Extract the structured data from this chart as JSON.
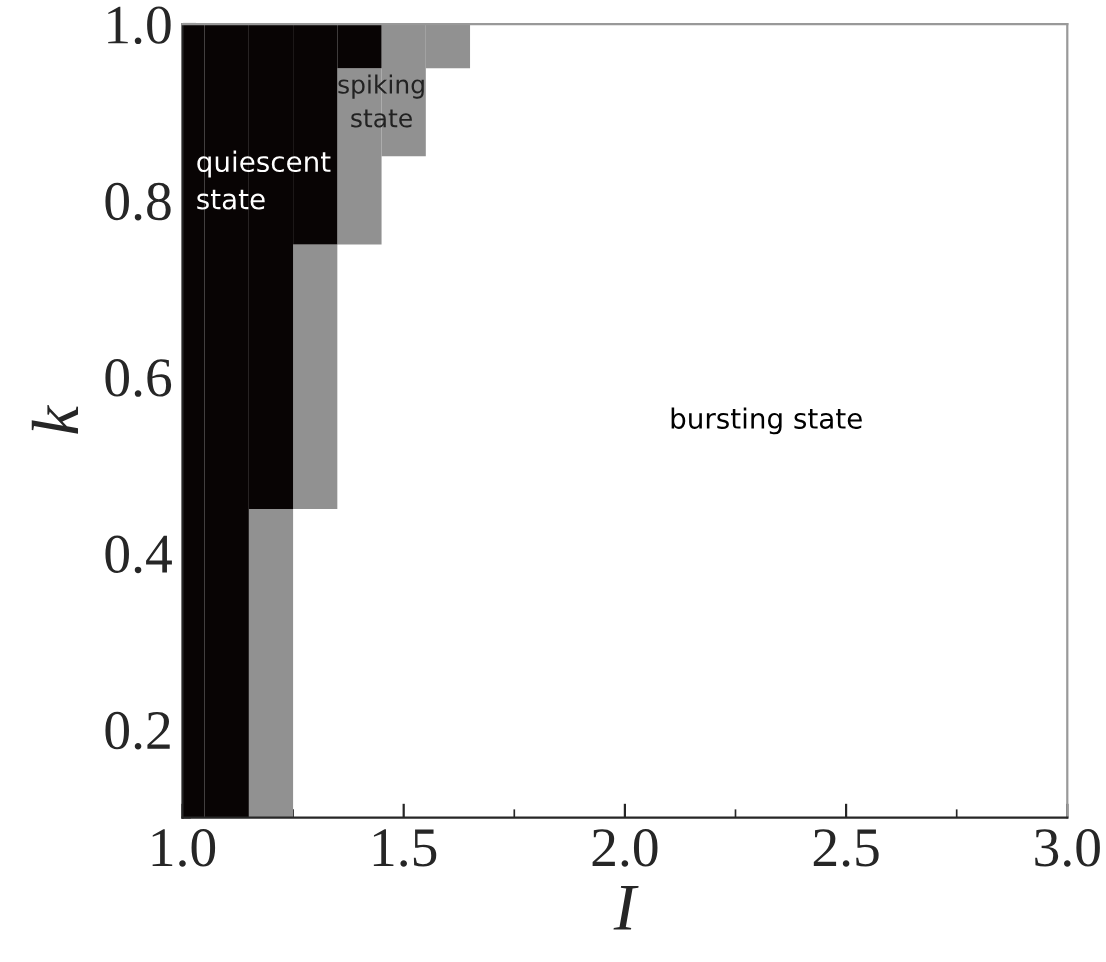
{
  "chart_data": {
    "type": "bar",
    "xlabel": "I",
    "ylabel": "k",
    "series": [
      {
        "color": "#919191",
        "x": [
          1.2,
          1.3,
          1.4,
          1.5,
          1.6
        ],
        "base": [
          0.1,
          0.45,
          0.75,
          0.85,
          0.95
        ],
        "values": [
          0.35,
          0.3,
          0.2,
          0.15,
          0.05
        ]
      },
      {
        "color": "#080404",
        "x": [
          1.0,
          1.1,
          1.2,
          1.3,
          1.4
        ],
        "base": [
          0.1,
          0.1,
          0.45,
          0.75,
          0.95
        ],
        "values": [
          0.9,
          0.9,
          0.55,
          0.25,
          0.05
        ]
      }
    ],
    "xlim": [
      1.0,
      3.0
    ],
    "xticks": [
      {
        "value": 1.0,
        "label": "1.0"
      },
      1.5,
      {
        "value": 2.0,
        "label": "2.0"
      },
      2.5,
      {
        "value": 3.0,
        "label": "3.0"
      }
    ],
    "ylim": [
      0.1,
      1.0
    ],
    "yticks": [
      0.2,
      0.4,
      0.6,
      0.8,
      {
        "value": 1.0,
        "label": "1.0"
      }
    ],
    "annotations": [
      "quiescent\nstate",
      "spiking\nstate",
      "bursting state"
    ],
    "grid": false,
    "legend": false
  }
}
